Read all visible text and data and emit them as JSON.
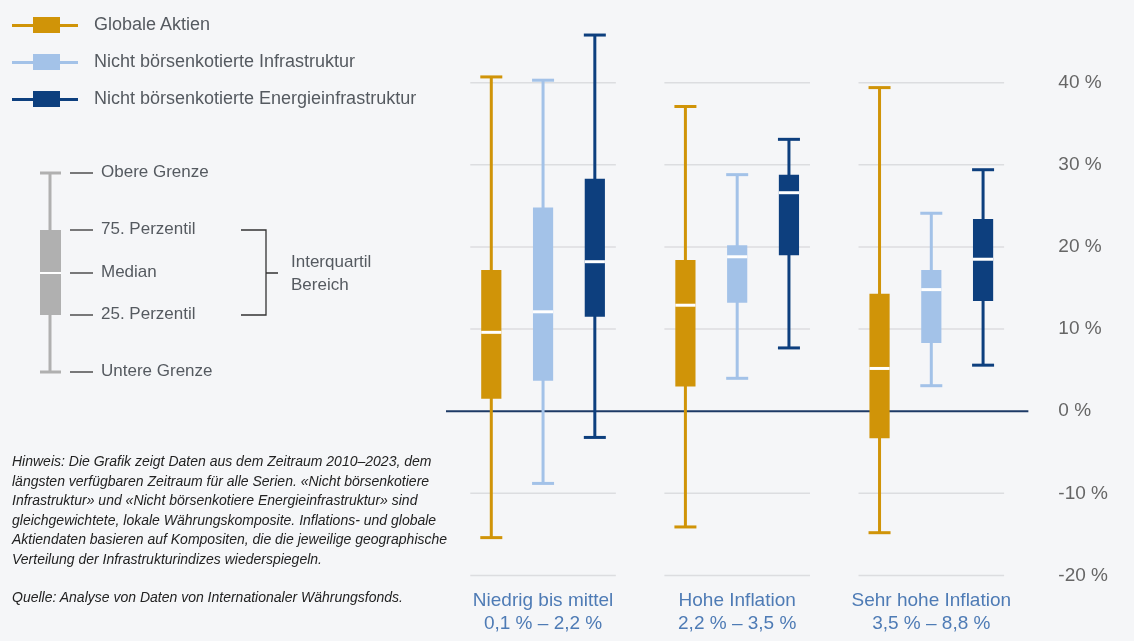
{
  "chart_data": {
    "type": "box",
    "categories": [
      "Niedrig bis mittel\n0,1 % – 2,2 %",
      "Hohe Inflation\n2,2 % – 3,5 %",
      "Sehr hohe Inflation\n3,5 % – 8,8 %"
    ],
    "series": [
      {
        "name": "Globale Aktien",
        "color": "#d09408",
        "boxes": [
          {
            "low": -15.4,
            "q1": 1.5,
            "median": 9.6,
            "q3": 17.2,
            "high": 40.7
          },
          {
            "low": -14.1,
            "q1": 3.0,
            "median": 12.9,
            "q3": 18.4,
            "high": 37.1
          },
          {
            "low": -14.8,
            "q1": -3.3,
            "median": 5.2,
            "q3": 14.3,
            "high": 39.4
          }
        ]
      },
      {
        "name": "Nicht börsenkotierte Infrastruktur",
        "color": "#a3c2e8",
        "boxes": [
          {
            "low": -8.8,
            "q1": 3.7,
            "median": 12.1,
            "q3": 24.8,
            "high": 40.3
          },
          {
            "low": 4.0,
            "q1": 13.2,
            "median": 18.8,
            "q3": 20.2,
            "high": 28.8
          },
          {
            "low": 3.1,
            "q1": 8.3,
            "median": 14.8,
            "q3": 17.2,
            "high": 24.1
          }
        ]
      },
      {
        "name": "Nicht börsenkotierte Energieinfrastruktur",
        "color": "#0d3f7e",
        "boxes": [
          {
            "low": -3.2,
            "q1": 11.5,
            "median": 18.2,
            "q3": 28.3,
            "high": 45.8
          },
          {
            "low": 7.7,
            "q1": 19.0,
            "median": 26.6,
            "q3": 28.8,
            "high": 33.1
          },
          {
            "low": 5.6,
            "q1": 13.4,
            "median": 18.5,
            "q3": 23.4,
            "high": 29.4
          }
        ]
      }
    ],
    "ylim": [
      -20,
      46
    ],
    "yticks": [
      {
        "value": -20,
        "label": "-20 %"
      },
      {
        "value": -10,
        "label": "-10 %"
      },
      {
        "value": 0,
        "label": "0 %"
      },
      {
        "value": 10,
        "label": "10 %"
      },
      {
        "value": 20,
        "label": "20 %"
      },
      {
        "value": 30,
        "label": "30 %"
      },
      {
        "value": 40,
        "label": "40 %"
      }
    ],
    "grid": "y",
    "legend": "top left",
    "ref_lines": [
      {
        "axis": "y",
        "value": 0,
        "color": "#1d3a66"
      }
    ],
    "annotations": [
      "Obere Grenze",
      "75. Perzentil",
      "Median",
      "25. Perzentil",
      "Untere Grenze",
      "Interquartil\nBereich",
      "Hinweis: Die Grafik zeigt Daten aus dem Zeitraum 2010–2023, dem längsten verfügbaren Zeitraum für alle Serien. «Nicht börsenkotiere Infrastruktur» und «Nicht börsenkotiere Energieinfrastruktur» sind gleichgewichtete, lokale Währungskomposite. Inflations- und globale Aktiendaten basieren auf Kompositen, die die jeweilige geographische Verteilung der Infrastrukturindizes wiederspiegeln.",
      "Quelle: Analyse von Daten von Internationaler Währungsfonds."
    ]
  }
}
